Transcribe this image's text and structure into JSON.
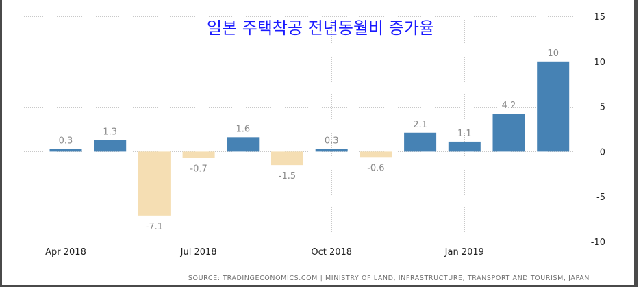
{
  "chart_data": {
    "type": "bar",
    "title": "일본 주택착공 전년동월비 증가율",
    "source": "SOURCE: TRADINGECONOMICS.COM | MINISTRY OF LAND, INFRASTRUCTURE, TRANSPORT AND TOURISM, JAPAN",
    "x_tick_labels": [
      {
        "label": "Apr 2018",
        "index": 0
      },
      {
        "label": "Jul 2018",
        "index": 3
      },
      {
        "label": "Oct 2018",
        "index": 6
      },
      {
        "label": "Jan 2019",
        "index": 9
      }
    ],
    "values": [
      0.3,
      1.3,
      -7.1,
      -0.7,
      1.6,
      -1.5,
      0.3,
      -0.6,
      2.1,
      1.1,
      4.2,
      10
    ],
    "data_labels": [
      "0.3",
      "1.3",
      "-7.1",
      "-0.7",
      "1.6",
      "-1.5",
      "0.3",
      "-0.6",
      "2.1",
      "1.1",
      "4.2",
      "10"
    ],
    "ylim": [
      -10,
      15
    ],
    "y_ticks": [
      15,
      10,
      5,
      0,
      -5,
      -10
    ],
    "y_axis_side": "right",
    "grid": true,
    "colors": {
      "positive": "#4682b4",
      "negative": "#f5deb3",
      "title": "#1a1aff",
      "grid": "#c8c8c8",
      "tick_text": "#222222",
      "label_text": "#8a8a8a"
    }
  }
}
